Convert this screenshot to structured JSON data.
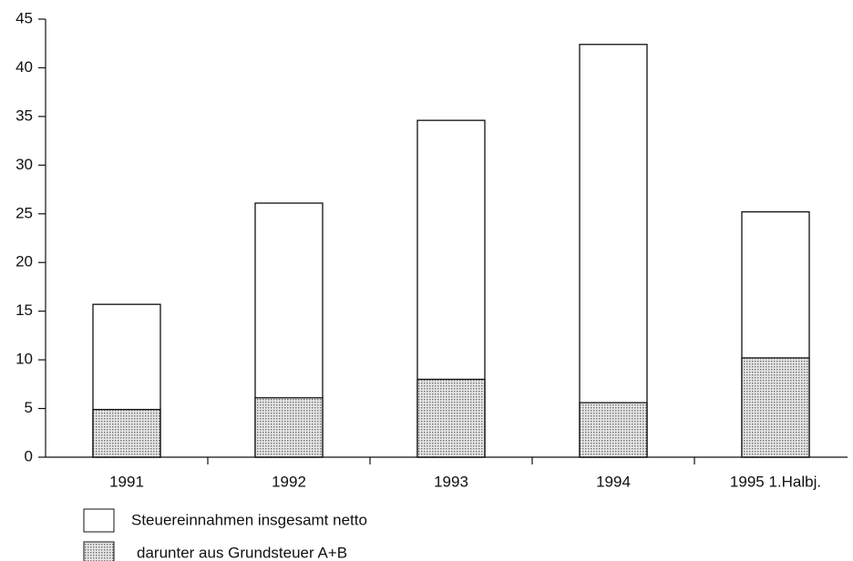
{
  "chart_data": {
    "type": "bar",
    "overlap": true,
    "categories": [
      "1991",
      "1992",
      "1993",
      "1994",
      "1995 1.Halbj."
    ],
    "series": [
      {
        "name": "Steuereinnahmen insgesamt netto",
        "color": "#ffffff",
        "values": [
          15.7,
          26.1,
          34.6,
          42.4,
          25.2
        ]
      },
      {
        "name": "darunter aus Grundsteuer A+B",
        "color": "#c8c8c8",
        "values": [
          4.9,
          6.1,
          8.0,
          5.6,
          10.2
        ]
      }
    ],
    "ylim": [
      0,
      45
    ],
    "yticks": [
      0,
      5,
      10,
      15,
      20,
      25,
      30,
      35,
      40,
      45
    ],
    "grid": false
  }
}
